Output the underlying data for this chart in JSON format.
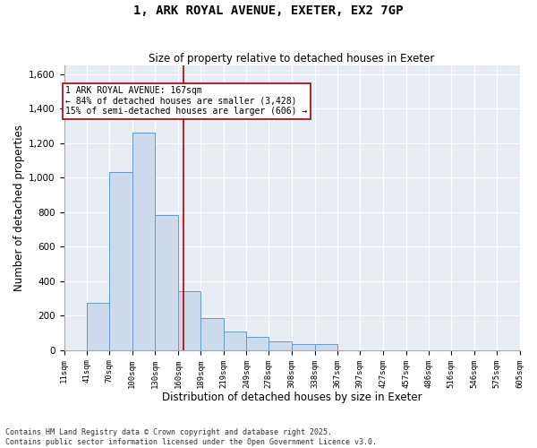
{
  "title": "1, ARK ROYAL AVENUE, EXETER, EX2 7GP",
  "subtitle": "Size of property relative to detached houses in Exeter",
  "xlabel": "Distribution of detached houses by size in Exeter",
  "ylabel": "Number of detached properties",
  "bar_color": "#ccdaeb",
  "bar_edge_color": "#6699cc",
  "background_color": "#e8edf4",
  "grid_color": "#ffffff",
  "vline_x": 167,
  "vline_color": "#bb0000",
  "annotation_text": "1 ARK ROYAL AVENUE: 167sqm\n← 84% of detached houses are smaller (3,428)\n15% of semi-detached houses are larger (606) →",
  "annotation_box_color": "#aa0000",
  "bin_edges": [
    11,
    41,
    70,
    100,
    130,
    160,
    189,
    219,
    249,
    278,
    308,
    338,
    367,
    397,
    427,
    457,
    486,
    516,
    546,
    575,
    605
  ],
  "bar_heights": [
    0,
    275,
    1035,
    1260,
    785,
    340,
    185,
    110,
    75,
    50,
    35,
    35,
    0,
    0,
    0,
    0,
    0,
    0,
    0,
    0
  ],
  "ylim": [
    0,
    1650
  ],
  "yticks": [
    0,
    200,
    400,
    600,
    800,
    1000,
    1200,
    1400,
    1600
  ],
  "figsize": [
    6.0,
    5.0
  ],
  "dpi": 100,
  "footnote": "Contains HM Land Registry data © Crown copyright and database right 2025.\nContains public sector information licensed under the Open Government Licence v3.0."
}
